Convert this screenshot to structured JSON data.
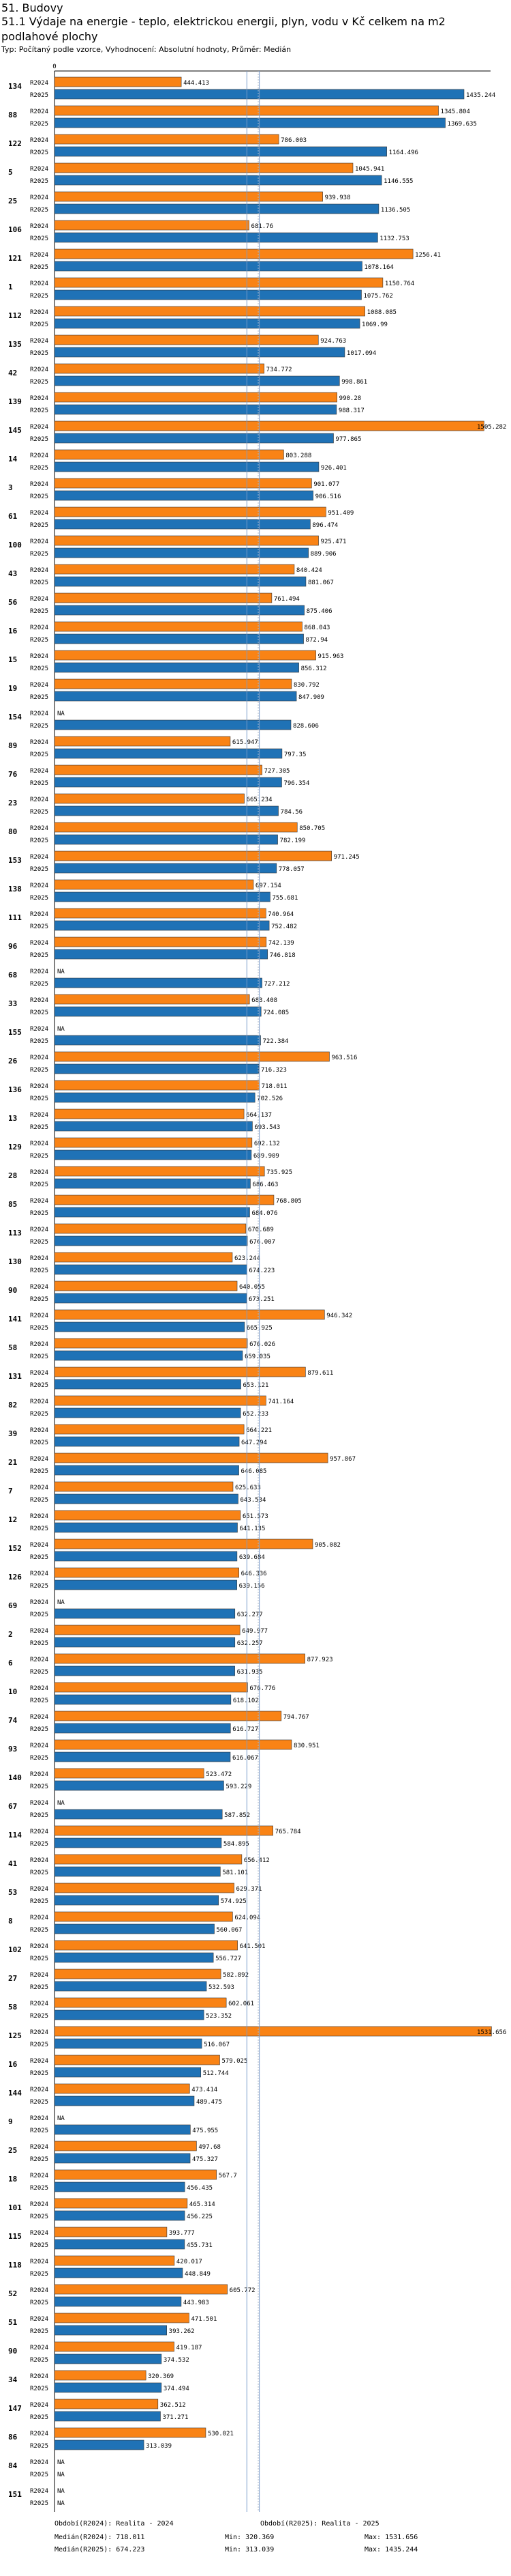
{
  "section": "51. Budovy",
  "heading": "51.1 Výdaje na energie - teplo, elektrickou energii, plyn, vodu v Kč celkem na m2 podlahové plochy",
  "subheading": "Typ: Počítaný podle vzorce, Vyhodnocení: Absolutní hodnoty, Průměr: Medián",
  "colors": {
    "r2024": "#f98315",
    "r2025": "#1f72b6",
    "line": "#7a9cc8"
  },
  "chart_data": {
    "type": "bar",
    "orientation": "horizontal",
    "series_names": [
      "R2024",
      "R2025"
    ],
    "na_label": "NA",
    "xlim": [
      0,
      1600
    ],
    "medians": {
      "r2024": 718.011,
      "r2025": 674.223
    },
    "rows": [
      {
        "id": "134",
        "v2024": 444.413,
        "v2025": 1435.244
      },
      {
        "id": "88",
        "v2024": 1345.804,
        "v2025": 1369.635
      },
      {
        "id": "122",
        "v2024": 786.003,
        "v2025": 1164.496
      },
      {
        "id": "5",
        "v2024": 1045.941,
        "v2025": 1146.555
      },
      {
        "id": "25",
        "v2024": 939.938,
        "v2025": 1136.505
      },
      {
        "id": "106",
        "v2024": 681.76,
        "v2025": 1132.753
      },
      {
        "id": "121",
        "v2024": 1256.41,
        "v2025": 1078.164
      },
      {
        "id": "1",
        "v2024": 1150.764,
        "v2025": 1075.762
      },
      {
        "id": "112",
        "v2024": 1088.085,
        "v2025": 1069.99
      },
      {
        "id": "135",
        "v2024": 924.763,
        "v2025": 1017.094
      },
      {
        "id": "42",
        "v2024": 734.772,
        "v2025": 998.861
      },
      {
        "id": "139",
        "v2024": 990.28,
        "v2025": 988.317
      },
      {
        "id": "145",
        "v2024": 1505.282,
        "v2025": 977.865
      },
      {
        "id": "14",
        "v2024": 803.288,
        "v2025": 926.401
      },
      {
        "id": "3",
        "v2024": 901.077,
        "v2025": 906.516
      },
      {
        "id": "61",
        "v2024": 951.409,
        "v2025": 896.474
      },
      {
        "id": "100",
        "v2024": 925.471,
        "v2025": 889.906
      },
      {
        "id": "43",
        "v2024": 840.424,
        "v2025": 881.067
      },
      {
        "id": "56",
        "v2024": 761.494,
        "v2025": 875.406
      },
      {
        "id": "16",
        "v2024": 868.043,
        "v2025": 872.94
      },
      {
        "id": "15",
        "v2024": 915.963,
        "v2025": 856.312
      },
      {
        "id": "19",
        "v2024": 830.792,
        "v2025": 847.909
      },
      {
        "id": "154",
        "v2024": null,
        "v2025": 828.606
      },
      {
        "id": "89",
        "v2024": 615.947,
        "v2025": 797.35
      },
      {
        "id": "76",
        "v2024": 727.305,
        "v2025": 796.354
      },
      {
        "id": "23",
        "v2024": 665.234,
        "v2025": 784.56
      },
      {
        "id": "80",
        "v2024": 850.705,
        "v2025": 782.199
      },
      {
        "id": "153",
        "v2024": 971.245,
        "v2025": 778.057
      },
      {
        "id": "138",
        "v2024": 697.154,
        "v2025": 755.681
      },
      {
        "id": "111",
        "v2024": 740.964,
        "v2025": 752.482
      },
      {
        "id": "96",
        "v2024": 742.139,
        "v2025": 746.818
      },
      {
        "id": "68",
        "v2024": null,
        "v2025": 727.212
      },
      {
        "id": "33",
        "v2024": 683.408,
        "v2025": 724.085
      },
      {
        "id": "155",
        "v2024": null,
        "v2025": 722.384
      },
      {
        "id": "26",
        "v2024": 963.516,
        "v2025": 716.323
      },
      {
        "id": "136",
        "v2024": 718.011,
        "v2025": 702.526
      },
      {
        "id": "13",
        "v2024": 664.137,
        "v2025": 693.543
      },
      {
        "id": "129",
        "v2024": 692.132,
        "v2025": 689.909
      },
      {
        "id": "28",
        "v2024": 735.925,
        "v2025": 686.463
      },
      {
        "id": "85",
        "v2024": 768.805,
        "v2025": 684.076
      },
      {
        "id": "113",
        "v2024": 670.689,
        "v2025": 676.007
      },
      {
        "id": "130",
        "v2024": 623.244,
        "v2025": 674.223
      },
      {
        "id": "90",
        "v2024": 640.055,
        "v2025": 673.251
      },
      {
        "id": "141",
        "v2024": 946.342,
        "v2025": 665.925
      },
      {
        "id": "58",
        "v2024": 676.026,
        "v2025": 659.035
      },
      {
        "id": "131",
        "v2024": 879.611,
        "v2025": 653.121
      },
      {
        "id": "82",
        "v2024": 741.164,
        "v2025": 652.233
      },
      {
        "id": "39",
        "v2024": 664.221,
        "v2025": 647.294
      },
      {
        "id": "21",
        "v2024": 957.867,
        "v2025": 646.085
      },
      {
        "id": "7",
        "v2024": 625.633,
        "v2025": 643.534
      },
      {
        "id": "12",
        "v2024": 651.573,
        "v2025": 641.135
      },
      {
        "id": "152",
        "v2024": 905.082,
        "v2025": 639.684
      },
      {
        "id": "126",
        "v2024": 646.336,
        "v2025": 639.156
      },
      {
        "id": "69",
        "v2024": null,
        "v2025": 632.277
      },
      {
        "id": "2",
        "v2024": 649.977,
        "v2025": 632.257
      },
      {
        "id": "6",
        "v2024": 877.923,
        "v2025": 631.935
      },
      {
        "id": "10",
        "v2024": 676.776,
        "v2025": 618.102
      },
      {
        "id": "74",
        "v2024": 794.767,
        "v2025": 616.727
      },
      {
        "id": "93",
        "v2024": 830.951,
        "v2025": 616.067
      },
      {
        "id": "140",
        "v2024": 523.472,
        "v2025": 593.229
      },
      {
        "id": "67",
        "v2024": null,
        "v2025": 587.852
      },
      {
        "id": "114",
        "v2024": 765.784,
        "v2025": 584.895
      },
      {
        "id": "41",
        "v2024": 656.412,
        "v2025": 581.101
      },
      {
        "id": "53",
        "v2024": 629.371,
        "v2025": 574.925
      },
      {
        "id": "8",
        "v2024": 624.094,
        "v2025": 560.067
      },
      {
        "id": "102",
        "v2024": 641.501,
        "v2025": 556.727
      },
      {
        "id": "27",
        "v2024": 582.892,
        "v2025": 532.593
      },
      {
        "id": "58",
        "v2024": 602.061,
        "v2025": 523.352
      },
      {
        "id": "125",
        "v2024": 1531.656,
        "v2025": 516.067
      },
      {
        "id": "16",
        "v2024": 579.025,
        "v2025": 512.744
      },
      {
        "id": "144",
        "v2024": 473.414,
        "v2025": 489.475
      },
      {
        "id": "9",
        "v2024": null,
        "v2025": 475.955
      },
      {
        "id": "25",
        "v2024": 497.68,
        "v2025": 475.327
      },
      {
        "id": "18",
        "v2024": 567.7,
        "v2025": 456.435
      },
      {
        "id": "101",
        "v2024": 465.314,
        "v2025": 456.225
      },
      {
        "id": "115",
        "v2024": 393.777,
        "v2025": 455.731
      },
      {
        "id": "118",
        "v2024": 420.017,
        "v2025": 448.849
      },
      {
        "id": "52",
        "v2024": 605.772,
        "v2025": 443.983
      },
      {
        "id": "51",
        "v2024": 471.501,
        "v2025": 393.262
      },
      {
        "id": "90",
        "v2024": 419.187,
        "v2025": 374.532
      },
      {
        "id": "34",
        "v2024": 320.369,
        "v2025": 374.494
      },
      {
        "id": "147",
        "v2024": 362.512,
        "v2025": 371.271
      },
      {
        "id": "86",
        "v2024": 530.021,
        "v2025": 313.039
      },
      {
        "id": "84",
        "v2024": null,
        "v2025": null
      },
      {
        "id": "151",
        "v2024": null,
        "v2025": null
      }
    ]
  },
  "footer": {
    "obdobi_2024": "Období(R2024): Realita - 2024",
    "obdobi_2025": "Období(R2025): Realita - 2025",
    "median_2024": "Medián(R2024): 718.011",
    "median_2025": "Medián(R2025): 674.223",
    "min_2024": "Min: 320.369",
    "min_2025": "Min: 313.039",
    "max_2024": "Max: 1531.656",
    "max_2025": "Max: 1435.244"
  }
}
